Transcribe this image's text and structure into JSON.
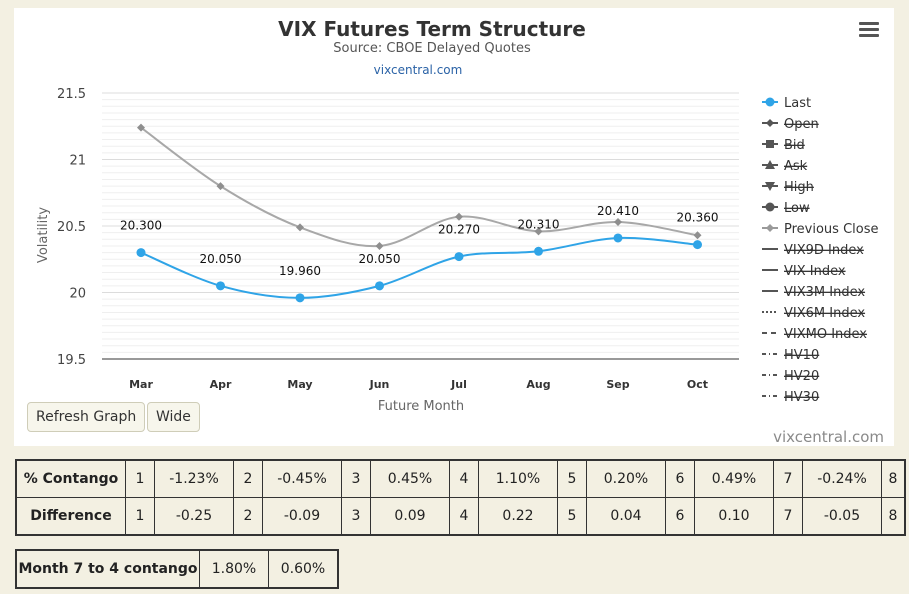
{
  "chart_data": {
    "type": "line",
    "title": "VIX Futures Term Structure",
    "subtitle": "Source: CBOE Delayed Quotes",
    "link": "vixcentral.com",
    "xlabel": "Future Month",
    "ylabel": "Volatility",
    "categories": [
      "Mar",
      "Apr",
      "May",
      "Jun",
      "Jul",
      "Aug",
      "Sep",
      "Oct"
    ],
    "ylim": [
      19.5,
      21.5
    ],
    "yticks": [
      "21.5",
      "21",
      "20.5",
      "20",
      "19.5"
    ],
    "grid": true,
    "legend_position": "right",
    "series": [
      {
        "name": "Last",
        "color": "#2fa4e7",
        "marker": "circle",
        "values": [
          20.3,
          20.05,
          19.96,
          20.05,
          20.27,
          20.31,
          20.41,
          20.36
        ],
        "labels": [
          "20.300",
          "20.050",
          "19.960",
          "20.050",
          "20.270",
          "20.310",
          "20.410",
          "20.360"
        ]
      },
      {
        "name": "Previous Close",
        "color": "#a8a8a8",
        "marker": "diamond",
        "values": [
          21.24,
          20.8,
          20.49,
          20.35,
          20.57,
          20.46,
          20.53,
          20.43
        ]
      }
    ],
    "legend": [
      {
        "name": "Last",
        "symbol": "circle",
        "active": true
      },
      {
        "name": "Open",
        "symbol": "diamond",
        "active": false
      },
      {
        "name": "Bid",
        "symbol": "square",
        "active": false
      },
      {
        "name": "Ask",
        "symbol": "triangle",
        "active": false
      },
      {
        "name": "High",
        "symbol": "triangle-down",
        "active": false
      },
      {
        "name": "Low",
        "symbol": "circle",
        "active": false
      },
      {
        "name": "Previous Close",
        "symbol": "diamond",
        "active": true
      },
      {
        "name": "VIX9D Index",
        "symbol": "solid",
        "active": false
      },
      {
        "name": "VIX Index",
        "symbol": "solid",
        "active": false
      },
      {
        "name": "VIX3M Index",
        "symbol": "solid",
        "active": false
      },
      {
        "name": "VIX6M Index",
        "symbol": "dotted",
        "active": false
      },
      {
        "name": "VIXMO Index",
        "symbol": "dashed",
        "active": false
      },
      {
        "name": "HV10",
        "symbol": "dashdot",
        "active": false
      },
      {
        "name": "HV20",
        "symbol": "dashdot",
        "active": false
      },
      {
        "name": "HV30",
        "symbol": "dashdot",
        "active": false
      }
    ]
  },
  "buttons": {
    "refresh": "Refresh Graph",
    "wide": "Wide"
  },
  "credit": "vixcentral.com",
  "contango_table": {
    "rows": [
      {
        "label": "% Contango",
        "cells": [
          "1",
          "-1.23%",
          "2",
          "-0.45%",
          "3",
          "0.45%",
          "4",
          "1.10%",
          "5",
          "0.20%",
          "6",
          "0.49%",
          "7",
          "-0.24%",
          "8"
        ]
      },
      {
        "label": "Difference",
        "cells": [
          "1",
          "-0.25",
          "2",
          "-0.09",
          "3",
          "0.09",
          "4",
          "0.22",
          "5",
          "0.04",
          "6",
          "0.10",
          "7",
          "-0.05",
          "8"
        ]
      }
    ]
  },
  "month_7_to_4": {
    "label": "Month 7 to 4 contango",
    "values": [
      "1.80%",
      "0.60%"
    ]
  }
}
